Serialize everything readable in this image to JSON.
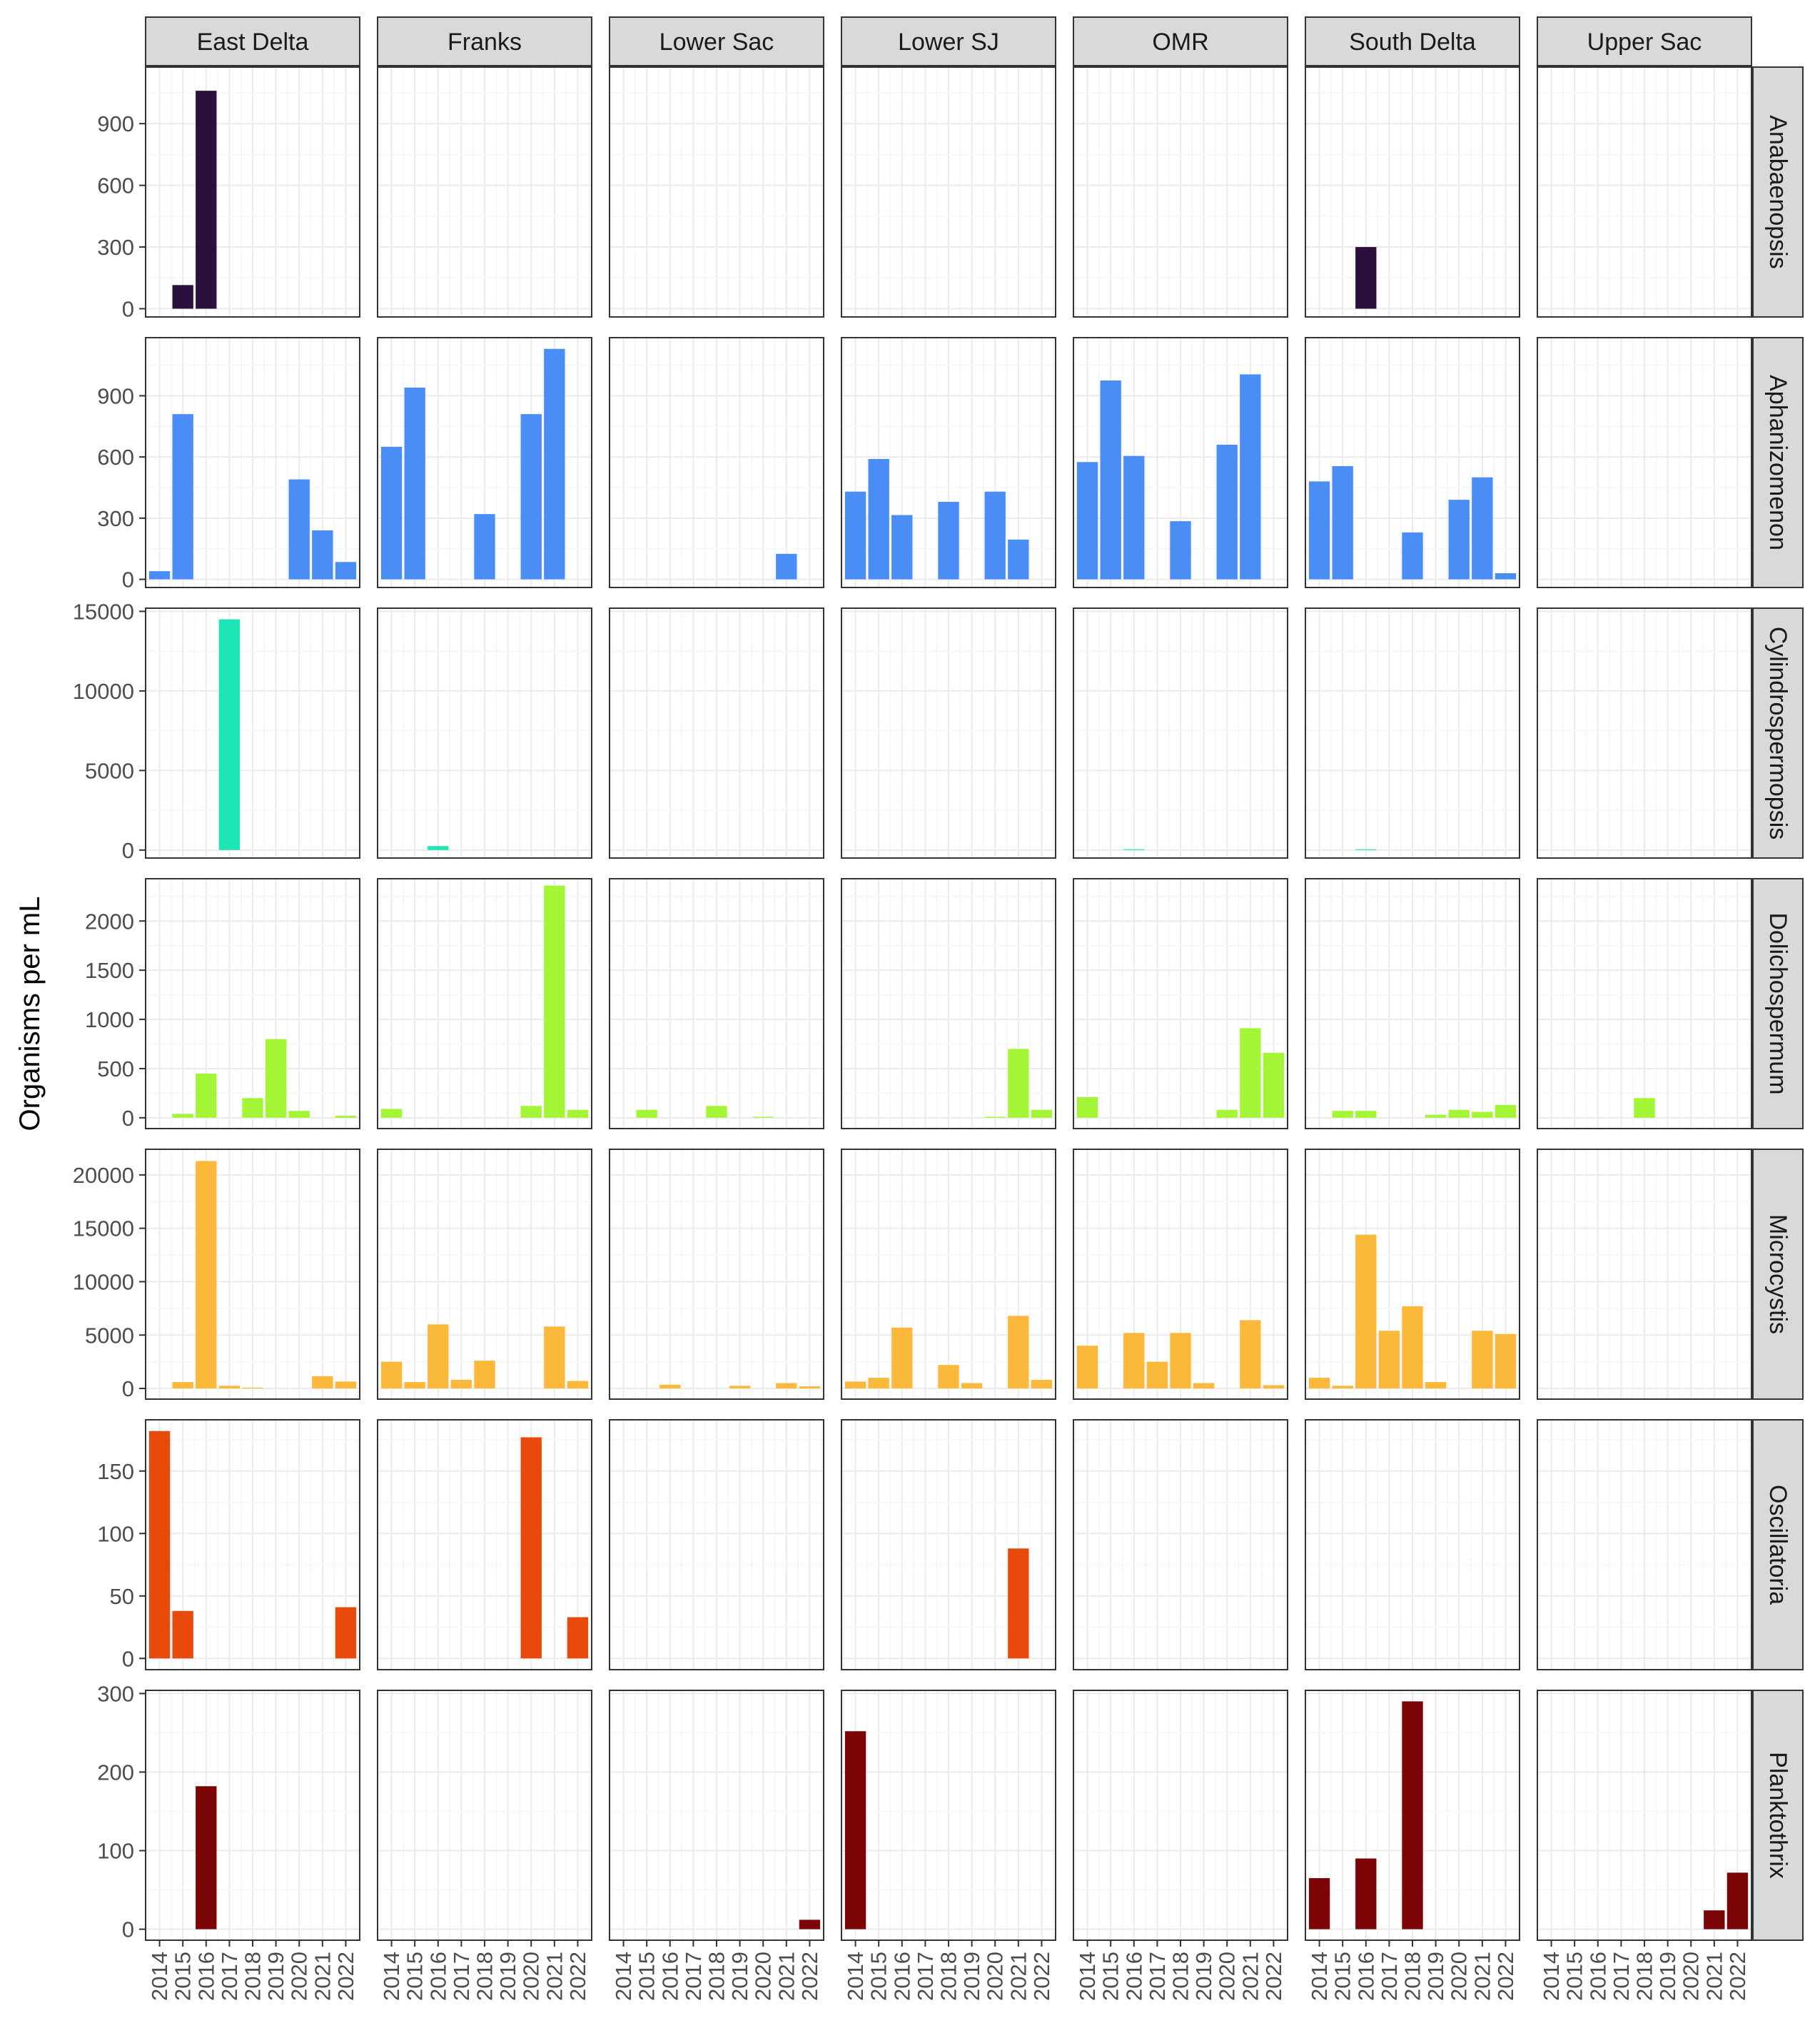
{
  "chart_data": {
    "type": "bar",
    "ylabel": "Organisms per mL",
    "xlabel": "",
    "years": [
      "2014",
      "2015",
      "2016",
      "2017",
      "2018",
      "2019",
      "2020",
      "2021",
      "2022"
    ],
    "regions": [
      "East Delta",
      "Franks",
      "Lower Sac",
      "Lower SJ",
      "OMR",
      "South Delta",
      "Upper Sac"
    ],
    "facet_scales": "free_y",
    "grid": true,
    "legend": "none",
    "rows": [
      {
        "genus": "Anabaenopsis",
        "color": "#2b0f3d",
        "ylim": [
          -40,
          1175
        ],
        "yticks": [
          0,
          300,
          600,
          900
        ],
        "ytick_labels": [
          "0",
          "300",
          "600",
          "900"
        ],
        "values": {
          "East Delta": {
            "2015": 115,
            "2016": 1060
          },
          "South Delta": {
            "2016": 300
          }
        }
      },
      {
        "genus": "Aphanizomenon",
        "color": "#4a8ef5",
        "ylim": [
          -40,
          1185
        ],
        "yticks": [
          0,
          300,
          600,
          900
        ],
        "ytick_labels": [
          "0",
          "300",
          "600",
          "900"
        ],
        "values": {
          "East Delta": {
            "2014": 40,
            "2015": 810,
            "2020": 490,
            "2021": 240,
            "2022": 85
          },
          "Franks": {
            "2014": 650,
            "2015": 940,
            "2018": 320,
            "2020": 810,
            "2021": 1130
          },
          "Lower Sac": {
            "2021": 125
          },
          "Lower SJ": {
            "2014": 430,
            "2015": 590,
            "2016": 315,
            "2018": 380,
            "2020": 430,
            "2021": 195
          },
          "OMR": {
            "2014": 575,
            "2015": 975,
            "2016": 605,
            "2018": 285,
            "2020": 660,
            "2021": 1005
          },
          "South Delta": {
            "2014": 480,
            "2015": 555,
            "2018": 230,
            "2020": 390,
            "2021": 500,
            "2022": 30
          }
        }
      },
      {
        "genus": "Cylindrospermopsis",
        "color": "#1de5b5",
        "ylim": [
          -500,
          15200
        ],
        "yticks": [
          0,
          5000,
          10000,
          15000
        ],
        "ytick_labels": [
          "0",
          "5000",
          "10000",
          "15000"
        ],
        "values": {
          "East Delta": {
            "2017": 14500
          },
          "Franks": {
            "2016": 250
          },
          "OMR": {
            "2016": 50
          },
          "South Delta": {
            "2016": 50
          }
        }
      },
      {
        "genus": "Dolichospermum",
        "color": "#a4f536",
        "ylim": [
          -110,
          2430
        ],
        "yticks": [
          0,
          500,
          1000,
          1500,
          2000
        ],
        "ytick_labels": [
          "0",
          "500",
          "1000",
          "1500",
          "2000"
        ],
        "values": {
          "East Delta": {
            "2015": 40,
            "2016": 450,
            "2018": 200,
            "2019": 800,
            "2020": 70,
            "2022": 20
          },
          "Franks": {
            "2014": 90,
            "2020": 120,
            "2021": 2360,
            "2022": 80
          },
          "Lower Sac": {
            "2015": 80,
            "2018": 120,
            "2020": 10
          },
          "Lower SJ": {
            "2020": 10,
            "2021": 700,
            "2022": 80
          },
          "OMR": {
            "2014": 210,
            "2020": 80,
            "2021": 910,
            "2022": 660
          },
          "South Delta": {
            "2015": 70,
            "2016": 70,
            "2019": 30,
            "2020": 80,
            "2021": 60,
            "2022": 130
          },
          "Upper Sac": {
            "2018": 200
          }
        }
      },
      {
        "genus": "Microcystis",
        "color": "#fbb93c",
        "ylim": [
          -1000,
          22400
        ],
        "yticks": [
          0,
          5000,
          10000,
          15000,
          20000
        ],
        "ytick_labels": [
          "0",
          "5000",
          "10000",
          "15000",
          "20000"
        ],
        "values": {
          "East Delta": {
            "2015": 600,
            "2016": 21300,
            "2017": 250,
            "2018": 80,
            "2021": 1150,
            "2022": 650
          },
          "Franks": {
            "2014": 2500,
            "2015": 600,
            "2016": 6000,
            "2017": 800,
            "2018": 2600,
            "2021": 5800,
            "2022": 700
          },
          "Lower Sac": {
            "2016": 350,
            "2019": 250,
            "2021": 500,
            "2022": 200
          },
          "Lower SJ": {
            "2014": 650,
            "2015": 1000,
            "2016": 5700,
            "2018": 2200,
            "2019": 500,
            "2021": 6800,
            "2022": 800
          },
          "OMR": {
            "2014": 4000,
            "2016": 5200,
            "2017": 2500,
            "2018": 5200,
            "2019": 500,
            "2021": 6400,
            "2022": 300
          },
          "South Delta": {
            "2014": 1000,
            "2015": 250,
            "2016": 14400,
            "2017": 5400,
            "2018": 7700,
            "2019": 600,
            "2021": 5400,
            "2022": 5100
          }
        }
      },
      {
        "genus": "Oscillatoria",
        "color": "#e84a0c",
        "ylim": [
          -9,
          191
        ],
        "yticks": [
          0,
          50,
          100,
          150
        ],
        "ytick_labels": [
          "0",
          "50",
          "100",
          "150"
        ],
        "values": {
          "East Delta": {
            "2014": 182,
            "2015": 38,
            "2022": 41
          },
          "Franks": {
            "2020": 177,
            "2022": 33
          },
          "Lower SJ": {
            "2021": 88
          }
        }
      },
      {
        "genus": "Planktothrix",
        "color": "#7b0407",
        "ylim": [
          -14,
          304
        ],
        "yticks": [
          0,
          100,
          200,
          300
        ],
        "ytick_labels": [
          "0",
          "100",
          "200",
          "300"
        ],
        "values": {
          "East Delta": {
            "2016": 182
          },
          "Lower Sac": {
            "2022": 12
          },
          "Lower SJ": {
            "2014": 252
          },
          "South Delta": {
            "2014": 65,
            "2016": 90,
            "2018": 290
          },
          "Upper Sac": {
            "2021": 24,
            "2022": 72
          }
        }
      }
    ]
  }
}
